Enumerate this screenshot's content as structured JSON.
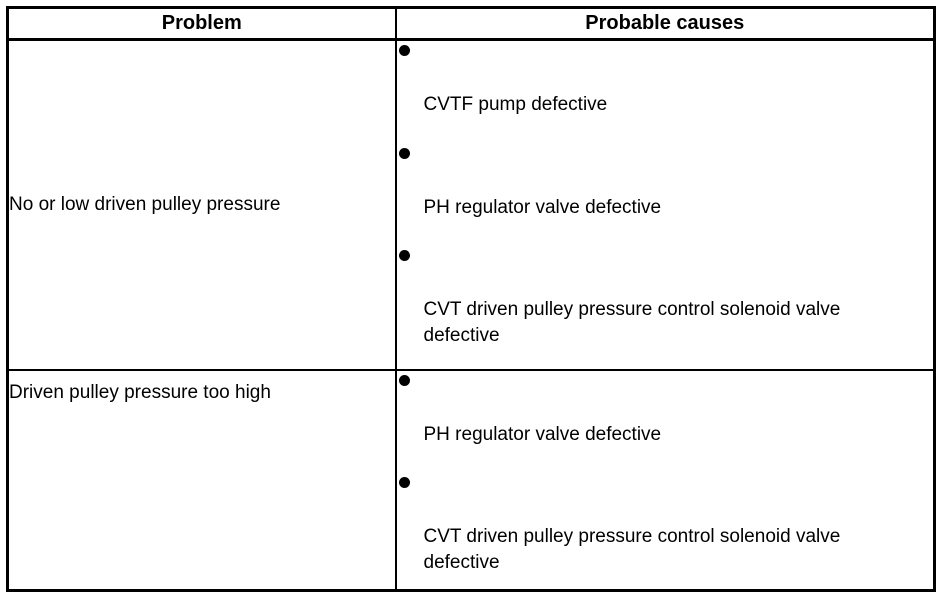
{
  "table": {
    "headers": [
      "Problem",
      "Probable causes"
    ],
    "rows": [
      {
        "problem": "No or low driven pulley pressure",
        "causes": [
          "CVTF pump defective",
          "PH regulator valve defective",
          "CVT driven pulley pressure control solenoid valve defective"
        ]
      },
      {
        "problem": "Driven pulley pressure too high",
        "causes": [
          "PH regulator valve defective",
          "CVT driven pulley pressure control solenoid valve defective"
        ]
      }
    ]
  }
}
